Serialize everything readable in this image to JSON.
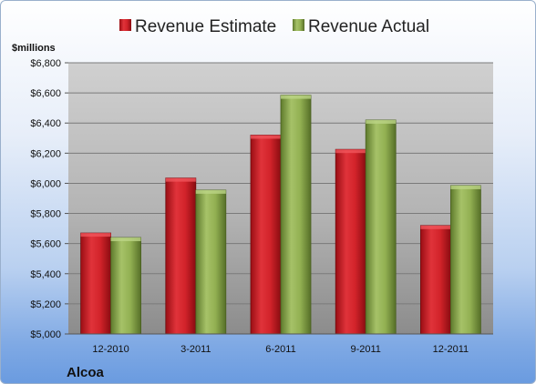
{
  "chart_data": {
    "type": "bar",
    "title": "",
    "ylabel": "$millions",
    "xlabel": "",
    "footer_label": "Alcoa",
    "categories": [
      "12-2010",
      "3-2011",
      "6-2011",
      "9-2011",
      "12-2011"
    ],
    "series": [
      {
        "name": "Revenue Estimate",
        "values": [
          5670,
          6035,
          6320,
          6225,
          5720
        ],
        "color": "#c8161d"
      },
      {
        "name": "Revenue Actual",
        "values": [
          5640,
          5955,
          6585,
          6420,
          5985
        ],
        "color": "#8aa84a"
      }
    ],
    "ylim": [
      5000,
      6800
    ],
    "yticks": [
      5000,
      5200,
      5400,
      5600,
      5800,
      6000,
      6200,
      6400,
      6600,
      6800
    ],
    "ytick_labels": [
      "$5,000",
      "$5,200",
      "$5,400",
      "$5,600",
      "$5,800",
      "$6,000",
      "$6,200",
      "$6,400",
      "$6,600",
      "$6,800"
    ],
    "grid": true,
    "legend_position": "top"
  }
}
